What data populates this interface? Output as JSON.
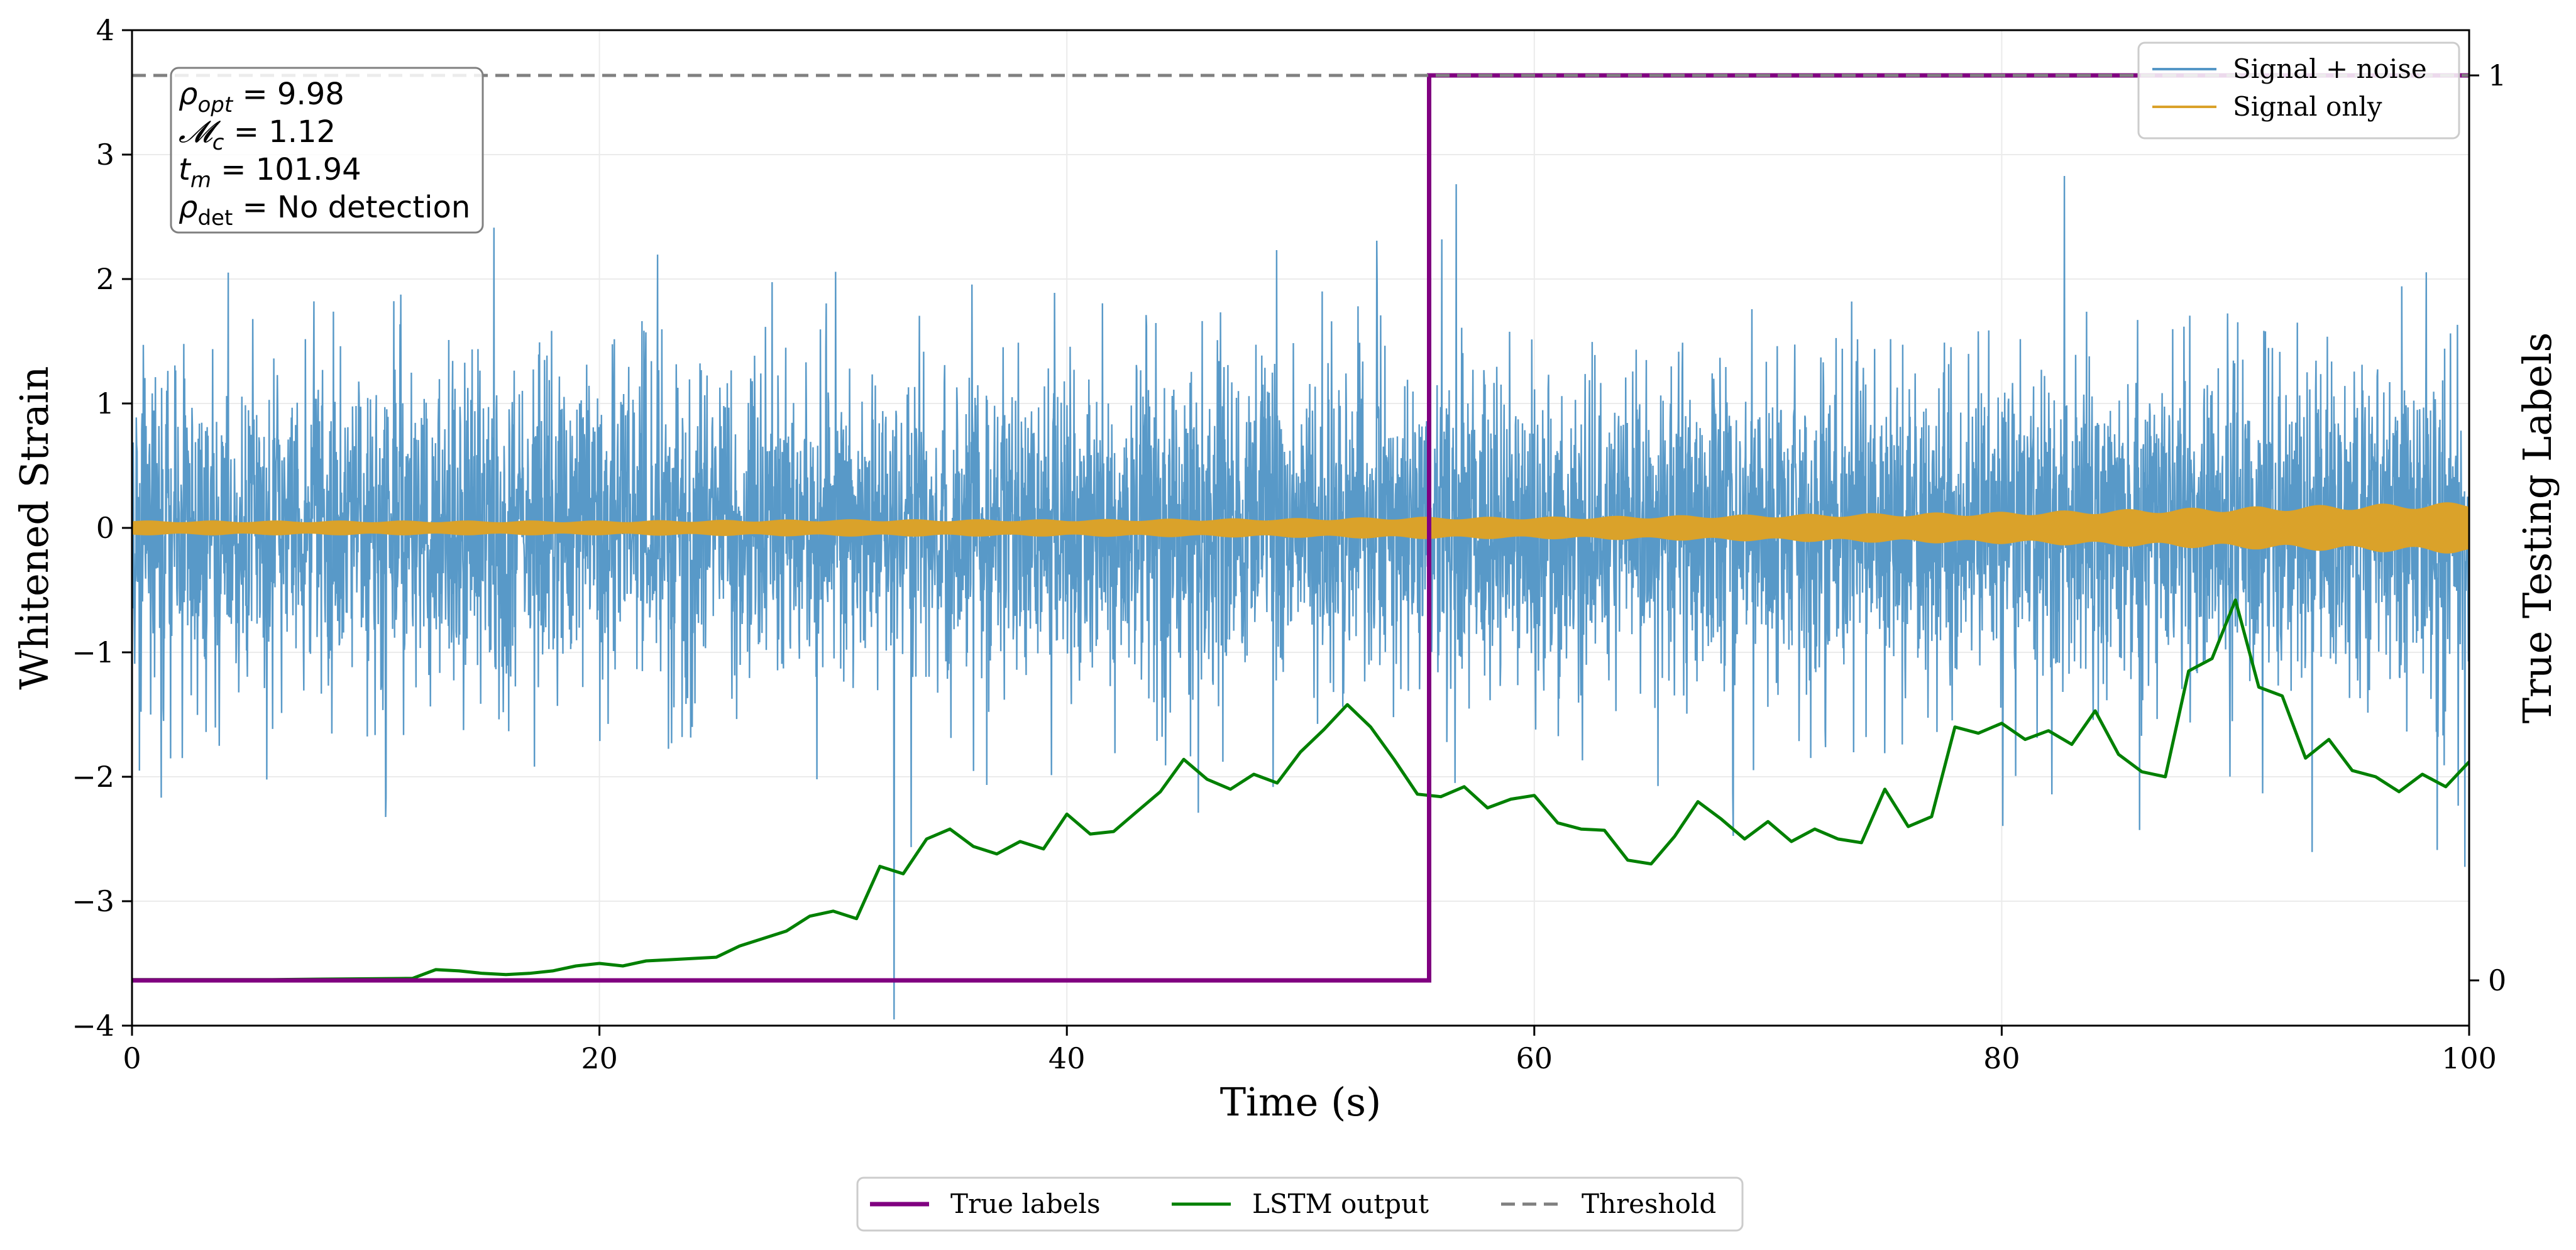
{
  "chart_data": {
    "type": "line",
    "x": {
      "label": "Time (s)",
      "range": [
        0,
        100
      ],
      "ticks": [
        0,
        20,
        40,
        60,
        80,
        100
      ],
      "tick_labels": [
        "0",
        "20",
        "40",
        "60",
        "80",
        "100"
      ]
    },
    "y_left": {
      "label": "Whitened Strain",
      "range": [
        -4,
        4
      ],
      "ticks": [
        -4,
        -3,
        -2,
        -1,
        0,
        1,
        2,
        3,
        4
      ],
      "tick_labels": [
        "−4",
        "−3",
        "−2",
        "−1",
        "0",
        "1",
        "2",
        "3",
        "4"
      ]
    },
    "y_right": {
      "label": "True Testing Labels",
      "range": [
        -0.05,
        1.05
      ],
      "ticks": [
        0,
        1
      ],
      "tick_labels": [
        "0",
        "1"
      ]
    },
    "grid": true,
    "series": [
      {
        "name": "Signal + noise",
        "axis": "left",
        "color": "#5597c7",
        "kind": "noise",
        "sample_count": 6000,
        "std": 0.62
      },
      {
        "name": "Signal only",
        "axis": "left",
        "color": "#daa22a",
        "kind": "chirp",
        "envelope_x": [
          0,
          10,
          20,
          30,
          40,
          50,
          55,
          60,
          70,
          80,
          90,
          100
        ],
        "envelope_amp": [
          0.06,
          0.06,
          0.06,
          0.07,
          0.07,
          0.08,
          0.09,
          0.09,
          0.11,
          0.13,
          0.17,
          0.21
        ]
      },
      {
        "name": "True labels",
        "axis": "right",
        "color": "#800080",
        "kind": "step",
        "x": [
          0,
          55.5,
          55.5,
          100
        ],
        "y": [
          0,
          0,
          1,
          1
        ]
      },
      {
        "name": "LSTM output",
        "axis": "left",
        "color": "#008000",
        "kind": "line",
        "x": [
          0,
          6,
          12,
          13,
          14,
          15,
          16,
          17,
          18,
          19,
          20,
          21,
          22,
          23,
          24,
          25,
          26,
          27,
          28,
          29,
          30,
          31,
          32,
          33,
          34,
          35,
          36,
          37,
          38,
          39,
          40,
          41,
          42,
          43,
          44,
          45,
          46,
          47,
          48,
          49,
          50,
          51,
          52,
          53,
          54,
          55,
          56,
          57,
          58,
          59,
          60,
          61,
          62,
          63,
          64,
          65,
          66,
          67,
          68,
          69,
          70,
          71,
          72,
          73,
          74,
          75,
          76,
          77,
          78,
          79,
          80,
          81,
          82,
          83,
          84,
          85,
          86,
          87,
          88,
          89,
          90,
          91,
          92,
          93,
          94,
          95,
          96,
          97,
          98,
          99,
          100
        ],
        "y": [
          -3.63,
          -3.63,
          -3.62,
          -3.55,
          -3.56,
          -3.58,
          -3.59,
          -3.58,
          -3.56,
          -3.52,
          -3.5,
          -3.52,
          -3.48,
          -3.47,
          -3.46,
          -3.45,
          -3.36,
          -3.3,
          -3.24,
          -3.12,
          -3.08,
          -3.14,
          -2.72,
          -2.78,
          -2.5,
          -2.42,
          -2.56,
          -2.62,
          -2.52,
          -2.58,
          -2.3,
          -2.46,
          -2.44,
          -2.28,
          -2.12,
          -1.86,
          -2.02,
          -2.1,
          -1.98,
          -2.05,
          -1.8,
          -1.62,
          -1.42,
          -1.6,
          -1.86,
          -2.14,
          -2.16,
          -2.08,
          -2.25,
          -2.18,
          -2.15,
          -2.37,
          -2.42,
          -2.43,
          -2.67,
          -2.7,
          -2.48,
          -2.2,
          -2.34,
          -2.5,
          -2.36,
          -2.52,
          -2.42,
          -2.5,
          -2.53,
          -2.1,
          -2.4,
          -2.32,
          -1.6,
          -1.65,
          -1.57,
          -1.7,
          -1.63,
          -1.74,
          -1.47,
          -1.82,
          -1.96,
          -2.0,
          -1.15,
          -1.05,
          -0.58,
          -1.28,
          -1.35,
          -1.85,
          -1.7,
          -1.95,
          -2.0,
          -2.12,
          -1.98,
          -2.08,
          -1.88
        ]
      },
      {
        "name": "Threshold",
        "axis": "right",
        "color": "#808080",
        "kind": "hline",
        "y": 1
      }
    ],
    "upper_legend": {
      "position": "top-right",
      "entries": [
        "Signal + noise",
        "Signal only"
      ]
    },
    "lower_legend": {
      "position": "bottom-center",
      "entries": [
        "True labels",
        "LSTM output",
        "Threshold"
      ]
    },
    "info_box": {
      "position": "top-left",
      "lines": [
        {
          "symbol": "ρ",
          "sub": "opt",
          "italic_sub": true,
          "text": " = 9.98"
        },
        {
          "symbol": "𝓜",
          "sub": "c",
          "italic_sub": true,
          "text": " = 1.12"
        },
        {
          "symbol": "t",
          "sub": "m",
          "italic_sub": true,
          "text": " = 101.94"
        },
        {
          "symbol": "ρ",
          "sub": "det",
          "italic_sub": false,
          "text": " = No detection"
        }
      ]
    }
  }
}
